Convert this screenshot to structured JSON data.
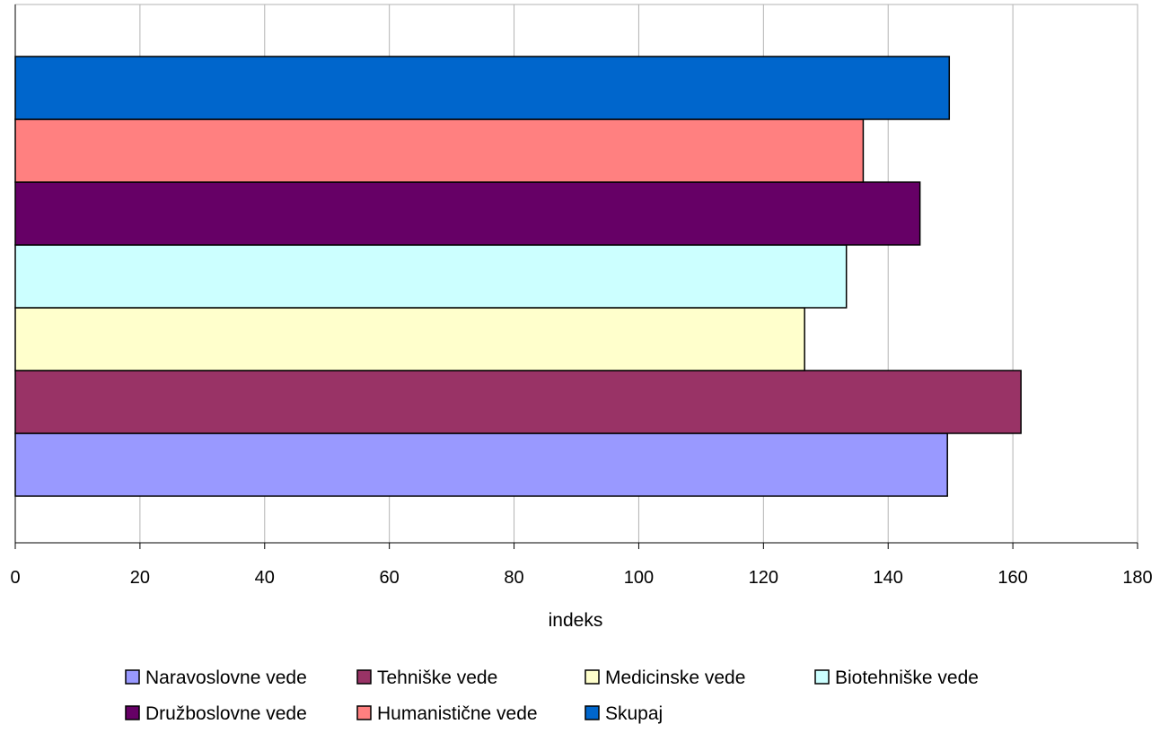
{
  "chart_data": {
    "type": "bar",
    "orientation": "horizontal",
    "title": "",
    "xlabel": "indeks",
    "ylabel": "",
    "xlim": [
      0,
      180
    ],
    "x_ticks": [
      0,
      20,
      40,
      60,
      80,
      100,
      120,
      140,
      160,
      180
    ],
    "grid": true,
    "legend_position": "bottom",
    "series": [
      {
        "name": "Naravoslovne vede",
        "value": 149.5,
        "color": "#9999ff"
      },
      {
        "name": "Tehniške vede",
        "value": 161.3,
        "color": "#993366"
      },
      {
        "name": "Medicinske vede",
        "value": 126.6,
        "color": "#ffffcc"
      },
      {
        "name": "Biotehniške vede",
        "value": 133.3,
        "color": "#ccffff"
      },
      {
        "name": "Družboslovne vede",
        "value": 145.1,
        "color": "#660066"
      },
      {
        "name": "Humanistične vede",
        "value": 136.0,
        "color": "#ff8080"
      },
      {
        "name": "Skupaj",
        "value": 149.8,
        "color": "#0066cc"
      }
    ]
  }
}
